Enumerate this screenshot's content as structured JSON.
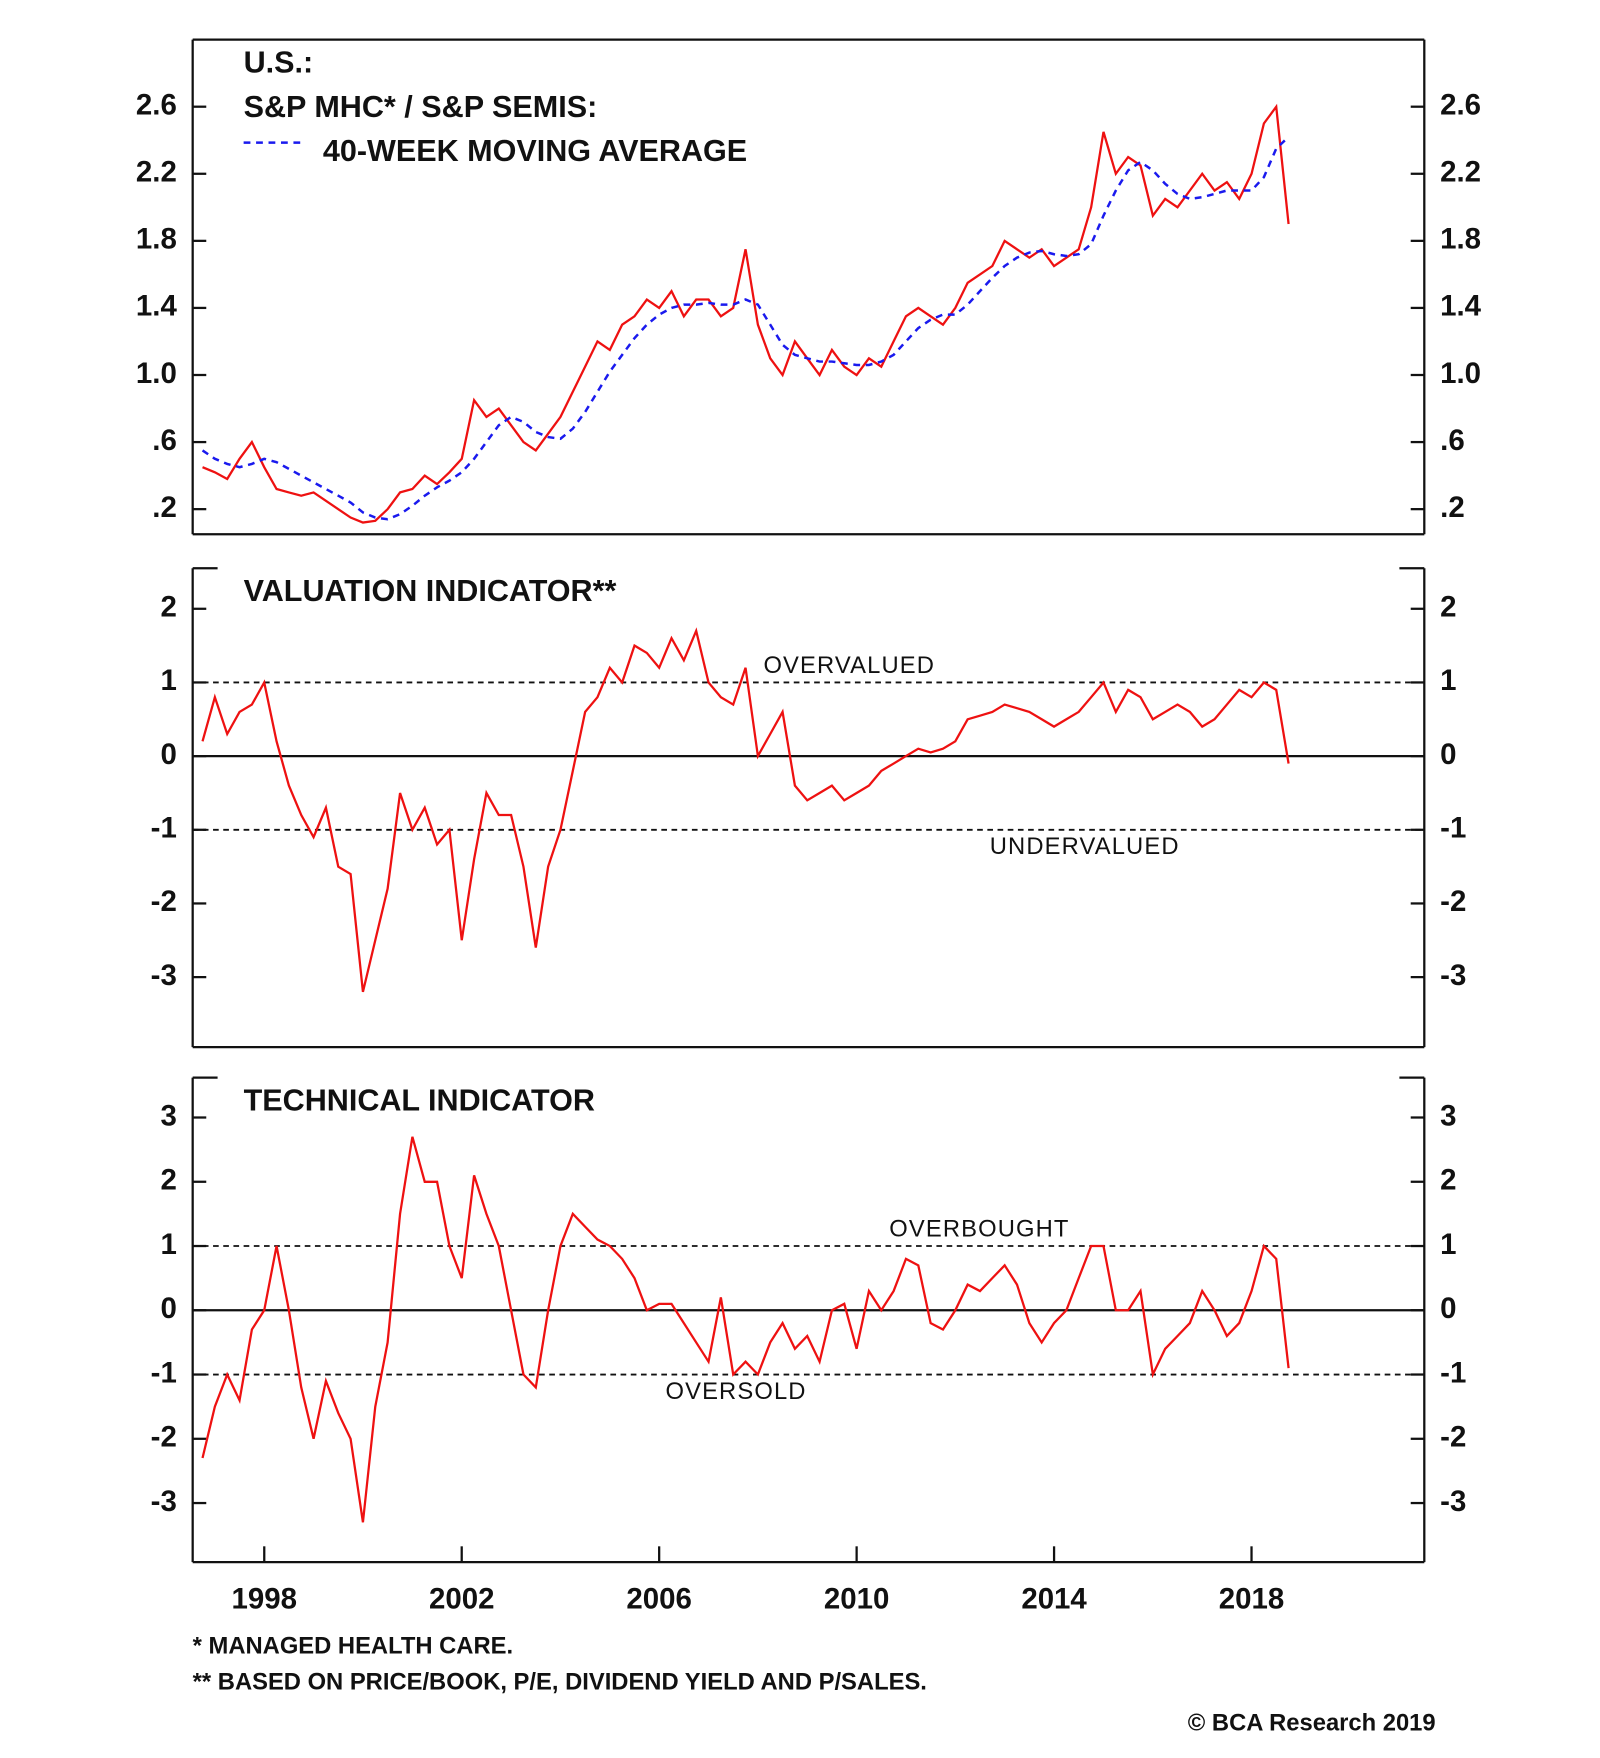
{
  "chart_data": [
    {
      "type": "line",
      "title": "U.S.:",
      "xlim": [
        1996.55,
        2021.5
      ],
      "x": [
        1996.75,
        1997,
        1997.25,
        1997.5,
        1997.75,
        1998,
        1998.25,
        1998.5,
        1998.75,
        1999,
        1999.25,
        1999.5,
        1999.75,
        2000,
        2000.25,
        2000.5,
        2000.75,
        2001,
        2001.25,
        2001.5,
        2001.75,
        2002,
        2002.25,
        2002.5,
        2002.75,
        2003,
        2003.25,
        2003.5,
        2003.75,
        2004,
        2004.25,
        2004.5,
        2004.75,
        2005,
        2005.25,
        2005.5,
        2005.75,
        2006,
        2006.25,
        2006.5,
        2006.75,
        2007,
        2007.25,
        2007.5,
        2007.75,
        2008,
        2008.25,
        2008.5,
        2008.75,
        2009,
        2009.25,
        2009.5,
        2009.75,
        2010,
        2010.25,
        2010.5,
        2010.75,
        2011,
        2011.25,
        2011.5,
        2011.75,
        2012,
        2012.25,
        2012.5,
        2012.75,
        2013,
        2013.25,
        2013.5,
        2013.75,
        2014,
        2014.25,
        2014.5,
        2014.75,
        2015,
        2015.25,
        2015.5,
        2015.75,
        2016,
        2016.25,
        2016.5,
        2016.75,
        2017,
        2017.25,
        2017.5,
        2017.75,
        2018,
        2018.25,
        2018.5,
        2018.75
      ],
      "ylim": [
        0.05,
        3.0
      ],
      "yticks": [
        {
          "value": 0.2,
          "label": ".2"
        },
        {
          "value": 0.6,
          "label": ".6"
        },
        {
          "value": 1.0,
          "label": "1.0"
        },
        1.4,
        1.8,
        2.2,
        2.6
      ],
      "series": [
        {
          "name": "S&P MHC* / S&P SEMIS:",
          "color": "#ee1111",
          "style": "solid",
          "values": [
            0.45,
            0.42,
            0.38,
            0.5,
            0.6,
            0.45,
            0.32,
            0.3,
            0.28,
            0.3,
            0.25,
            0.2,
            0.15,
            0.12,
            0.13,
            0.2,
            0.3,
            0.32,
            0.4,
            0.35,
            0.42,
            0.5,
            0.85,
            0.75,
            0.8,
            0.7,
            0.6,
            0.55,
            0.65,
            0.75,
            0.9,
            1.05,
            1.2,
            1.15,
            1.3,
            1.35,
            1.45,
            1.4,
            1.5,
            1.35,
            1.45,
            1.45,
            1.35,
            1.4,
            1.75,
            1.3,
            1.1,
            1.0,
            1.2,
            1.1,
            1.0,
            1.15,
            1.05,
            1.0,
            1.1,
            1.05,
            1.2,
            1.35,
            1.4,
            1.35,
            1.3,
            1.4,
            1.55,
            1.6,
            1.65,
            1.8,
            1.75,
            1.7,
            1.75,
            1.65,
            1.7,
            1.75,
            2.0,
            2.45,
            2.2,
            2.3,
            2.25,
            1.95,
            2.05,
            2.0,
            2.1,
            2.2,
            2.1,
            2.15,
            2.05,
            2.2,
            2.5,
            2.6,
            1.9
          ]
        },
        {
          "name": "40-WEEK MOVING AVERAGE",
          "color": "#1a1aee",
          "style": "dashed",
          "values": [
            0.55,
            0.5,
            0.47,
            0.45,
            0.47,
            0.5,
            0.48,
            0.44,
            0.4,
            0.36,
            0.32,
            0.28,
            0.24,
            0.18,
            0.15,
            0.14,
            0.17,
            0.22,
            0.28,
            0.33,
            0.37,
            0.42,
            0.5,
            0.6,
            0.7,
            0.75,
            0.72,
            0.66,
            0.63,
            0.62,
            0.68,
            0.78,
            0.9,
            1.02,
            1.12,
            1.22,
            1.3,
            1.36,
            1.4,
            1.42,
            1.42,
            1.43,
            1.42,
            1.42,
            1.45,
            1.42,
            1.3,
            1.18,
            1.12,
            1.1,
            1.08,
            1.08,
            1.07,
            1.06,
            1.06,
            1.08,
            1.12,
            1.2,
            1.28,
            1.33,
            1.36,
            1.36,
            1.42,
            1.5,
            1.58,
            1.65,
            1.7,
            1.73,
            1.74,
            1.72,
            1.71,
            1.72,
            1.78,
            1.95,
            2.1,
            2.22,
            2.27,
            2.22,
            2.14,
            2.08,
            2.05,
            2.06,
            2.08,
            2.1,
            2.1,
            2.1,
            2.18,
            2.35,
            2.42
          ]
        }
      ]
    },
    {
      "type": "line",
      "title": "VALUATION INDICATOR**",
      "xlim": [
        1996.55,
        2021.5
      ],
      "x": [
        1996.75,
        1997,
        1997.25,
        1997.5,
        1997.75,
        1998,
        1998.25,
        1998.5,
        1998.75,
        1999,
        1999.25,
        1999.5,
        1999.75,
        2000,
        2000.25,
        2000.5,
        2000.75,
        2001,
        2001.25,
        2001.5,
        2001.75,
        2002,
        2002.25,
        2002.5,
        2002.75,
        2003,
        2003.25,
        2003.5,
        2003.75,
        2004,
        2004.25,
        2004.5,
        2004.75,
        2005,
        2005.25,
        2005.5,
        2005.75,
        2006,
        2006.25,
        2006.5,
        2006.75,
        2007,
        2007.25,
        2007.5,
        2007.75,
        2008,
        2008.25,
        2008.5,
        2008.75,
        2009,
        2009.25,
        2009.5,
        2009.75,
        2010,
        2010.25,
        2010.5,
        2010.75,
        2011,
        2011.25,
        2011.5,
        2011.75,
        2012,
        2012.25,
        2012.5,
        2012.75,
        2013,
        2013.25,
        2013.5,
        2013.75,
        2014,
        2014.25,
        2014.5,
        2014.75,
        2015,
        2015.25,
        2015.5,
        2015.75,
        2016,
        2016.25,
        2016.5,
        2016.75,
        2017,
        2017.25,
        2017.5,
        2017.75,
        2018,
        2018.25,
        2018.5,
        2018.75
      ],
      "ylim": [
        -3.95,
        2.55
      ],
      "yticks": [
        -3,
        -2,
        -1,
        0,
        1,
        2
      ],
      "reference_lines": [
        {
          "value": 1,
          "label": "OVERVALUED",
          "style": "dashed"
        },
        {
          "value": 0,
          "style": "solid"
        },
        {
          "value": -1,
          "label": "UNDERVALUED",
          "style": "dashed"
        }
      ],
      "series": [
        {
          "color": "#ee1111",
          "style": "solid",
          "values": [
            0.2,
            0.8,
            0.3,
            0.6,
            0.7,
            1.0,
            0.2,
            -0.4,
            -0.8,
            -1.1,
            -0.7,
            -1.5,
            -1.6,
            -3.2,
            -2.5,
            -1.8,
            -0.5,
            -1.0,
            -0.7,
            -1.2,
            -1.0,
            -2.5,
            -1.4,
            -0.5,
            -0.8,
            -0.8,
            -1.5,
            -2.6,
            -1.5,
            -1.0,
            -0.2,
            0.6,
            0.8,
            1.2,
            1.0,
            1.5,
            1.4,
            1.2,
            1.6,
            1.3,
            1.7,
            1.0,
            0.8,
            0.7,
            1.2,
            0.0,
            0.3,
            0.6,
            -0.4,
            -0.6,
            -0.5,
            -0.4,
            -0.6,
            -0.5,
            -0.4,
            -0.2,
            -0.1,
            0.0,
            0.1,
            0.05,
            0.1,
            0.2,
            0.5,
            0.55,
            0.6,
            0.7,
            0.65,
            0.6,
            0.5,
            0.4,
            0.5,
            0.6,
            0.8,
            1.0,
            0.6,
            0.9,
            0.8,
            0.5,
            0.6,
            0.7,
            0.6,
            0.4,
            0.5,
            0.7,
            0.9,
            0.8,
            1.0,
            0.9,
            -0.1
          ]
        }
      ]
    },
    {
      "type": "line",
      "title": "TECHNICAL INDICATOR",
      "xlim": [
        1996.55,
        2021.5
      ],
      "xticks": [
        1998,
        2002,
        2006,
        2010,
        2014,
        2018
      ],
      "x": [
        1996.75,
        1997,
        1997.25,
        1997.5,
        1997.75,
        1998,
        1998.25,
        1998.5,
        1998.75,
        1999,
        1999.25,
        1999.5,
        1999.75,
        2000,
        2000.25,
        2000.5,
        2000.75,
        2001,
        2001.25,
        2001.5,
        2001.75,
        2002,
        2002.25,
        2002.5,
        2002.75,
        2003,
        2003.25,
        2003.5,
        2003.75,
        2004,
        2004.25,
        2004.5,
        2004.75,
        2005,
        2005.25,
        2005.5,
        2005.75,
        2006,
        2006.25,
        2006.5,
        2006.75,
        2007,
        2007.25,
        2007.5,
        2007.75,
        2008,
        2008.25,
        2008.5,
        2008.75,
        2009,
        2009.25,
        2009.5,
        2009.75,
        2010,
        2010.25,
        2010.5,
        2010.75,
        2011,
        2011.25,
        2011.5,
        2011.75,
        2012,
        2012.25,
        2012.5,
        2012.75,
        2013,
        2013.25,
        2013.5,
        2013.75,
        2014,
        2014.25,
        2014.5,
        2014.75,
        2015,
        2015.25,
        2015.5,
        2015.75,
        2016,
        2016.25,
        2016.5,
        2016.75,
        2017,
        2017.25,
        2017.5,
        2017.75,
        2018,
        2018.25,
        2018.5,
        2018.75
      ],
      "ylim": [
        -3.92,
        3.62
      ],
      "yticks": [
        -3,
        -2,
        -1,
        0,
        1,
        2,
        3
      ],
      "reference_lines": [
        {
          "value": 1,
          "label": "OVERBOUGHT",
          "style": "dashed"
        },
        {
          "value": 0,
          "style": "solid"
        },
        {
          "value": -1,
          "label": "OVERSOLD",
          "style": "dashed"
        }
      ],
      "series": [
        {
          "color": "#ee1111",
          "style": "solid",
          "values": [
            -2.3,
            -1.5,
            -1.0,
            -1.4,
            -0.3,
            0.0,
            1.0,
            0.0,
            -1.2,
            -2.0,
            -1.1,
            -1.6,
            -2.0,
            -3.3,
            -1.5,
            -0.5,
            1.5,
            2.7,
            2.0,
            2.0,
            1.0,
            0.5,
            2.1,
            1.5,
            1.0,
            0.0,
            -1.0,
            -1.2,
            0.0,
            1.0,
            1.5,
            1.3,
            1.1,
            1.0,
            0.8,
            0.5,
            0.0,
            0.1,
            0.1,
            -0.2,
            -0.5,
            -0.8,
            0.2,
            -1.0,
            -0.8,
            -1.0,
            -0.5,
            -0.2,
            -0.6,
            -0.4,
            -0.8,
            0.0,
            0.1,
            -0.6,
            0.3,
            0.0,
            0.3,
            0.8,
            0.7,
            -0.2,
            -0.3,
            0.0,
            0.4,
            0.3,
            0.5,
            0.7,
            0.4,
            -0.2,
            -0.5,
            -0.2,
            0.0,
            0.5,
            1.0,
            1.0,
            0.0,
            0.0,
            0.3,
            -1.0,
            -0.6,
            -0.4,
            -0.2,
            0.3,
            0.0,
            -0.4,
            -0.2,
            0.3,
            1.0,
            0.8,
            -0.9
          ]
        }
      ]
    }
  ],
  "notes": [
    "*  MANAGED HEALTH CARE.",
    "** BASED ON PRICE/BOOK, P/E, DIVIDEND YIELD AND P/SALES."
  ],
  "source": "© BCA Research 2019"
}
